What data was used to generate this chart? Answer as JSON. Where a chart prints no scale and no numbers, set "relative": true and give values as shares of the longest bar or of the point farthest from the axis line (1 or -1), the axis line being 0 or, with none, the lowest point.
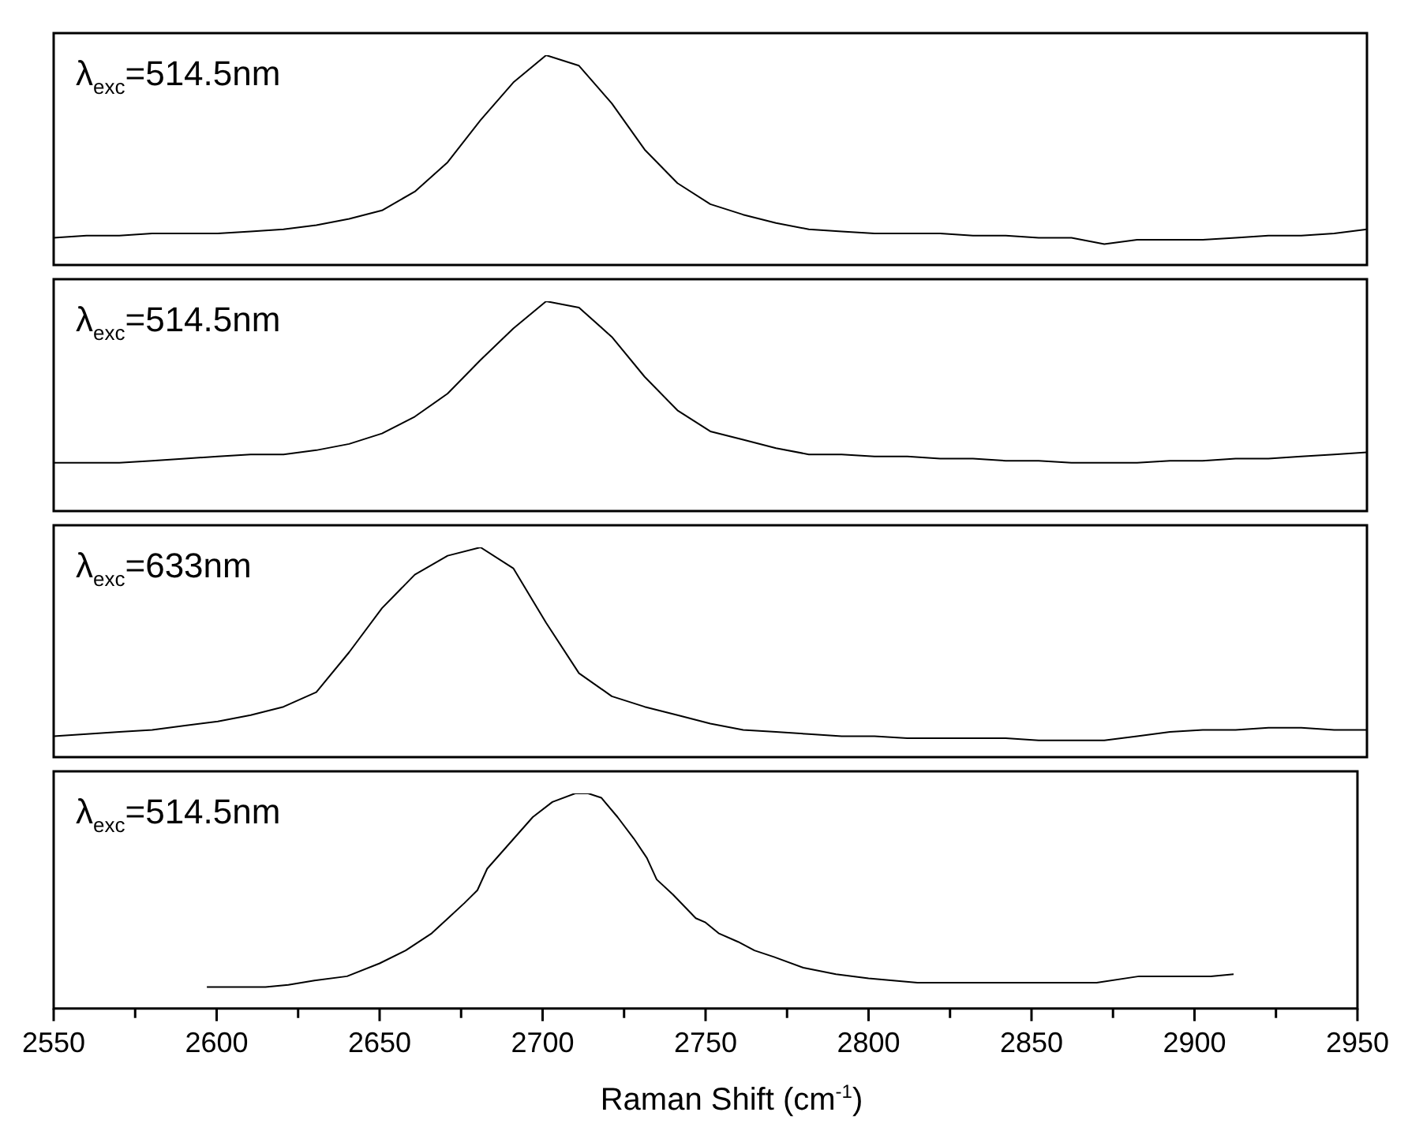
{
  "chart_data": [
    {
      "type": "line",
      "relative": true,
      "color": "#000000",
      "tick_labels": false,
      "annotations": [
        "λ$_{exc}$=514.5nm"
      ],
      "categories": [
        null,
        null,
        null,
        null,
        null,
        null,
        null,
        null,
        null,
        null,
        null,
        null,
        null,
        null,
        null,
        null,
        null,
        null,
        null,
        null,
        null,
        null,
        null,
        null,
        null,
        null,
        null,
        null,
        null,
        null,
        null,
        null,
        null,
        null,
        null,
        null,
        null,
        null,
        null,
        null,
        null
      ],
      "values": [
        0.13,
        0.14,
        0.14,
        0.15,
        0.15,
        0.15,
        0.16,
        0.17,
        0.19,
        0.22,
        0.26,
        0.35,
        0.49,
        0.69,
        0.87,
        1,
        0.95,
        0.77,
        0.55,
        0.39,
        0.29,
        0.24,
        0.2,
        0.17,
        0.16,
        0.15,
        0.15,
        0.15,
        0.14,
        0.14,
        0.13,
        0.13,
        0.1,
        0.12,
        0.12,
        0.12,
        0.13,
        0.14,
        0.14,
        0.15,
        0.17
      ]
    },
    {
      "type": "line",
      "relative": true,
      "color": "#000000",
      "tick_labels": false,
      "annotations": [
        "λ$_{exc}$=514.5nm"
      ],
      "categories": [
        null,
        null,
        null,
        null,
        null,
        null,
        null,
        null,
        null,
        null,
        null,
        null,
        null,
        null,
        null,
        null,
        null,
        null,
        null,
        null,
        null,
        null,
        null,
        null,
        null,
        null,
        null,
        null,
        null,
        null,
        null,
        null,
        null,
        null,
        null,
        null,
        null,
        null,
        null,
        null,
        null
      ],
      "values": [
        0.23,
        0.23,
        0.23,
        0.24,
        0.25,
        0.26,
        0.27,
        0.27,
        0.29,
        0.32,
        0.37,
        0.45,
        0.56,
        0.72,
        0.87,
        1,
        0.97,
        0.83,
        0.64,
        0.48,
        0.38,
        0.34,
        0.3,
        0.27,
        0.27,
        0.26,
        0.26,
        0.25,
        0.25,
        0.24,
        0.24,
        0.23,
        0.23,
        0.23,
        0.24,
        0.24,
        0.25,
        0.25,
        0.26,
        0.27,
        0.28
      ]
    },
    {
      "type": "line",
      "relative": true,
      "color": "#000000",
      "tick_labels": false,
      "annotations": [
        "λ$_{exc}$=633nm"
      ],
      "categories": [
        null,
        null,
        null,
        null,
        null,
        null,
        null,
        null,
        null,
        null,
        null,
        null,
        null,
        null,
        null,
        null,
        null,
        null,
        null,
        null,
        null,
        null,
        null,
        null,
        null,
        null,
        null,
        null,
        null,
        null,
        null,
        null,
        null,
        null,
        null,
        null,
        null,
        null,
        null,
        null,
        null
      ],
      "values": [
        0.1,
        0.11,
        0.12,
        0.13,
        0.15,
        0.17,
        0.2,
        0.24,
        0.31,
        0.5,
        0.71,
        0.87,
        0.96,
        1,
        0.9,
        0.64,
        0.4,
        0.29,
        0.24,
        0.2,
        0.16,
        0.13,
        0.12,
        0.11,
        0.1,
        0.1,
        0.09,
        0.09,
        0.09,
        0.09,
        0.08,
        0.08,
        0.08,
        0.1,
        0.12,
        0.13,
        0.13,
        0.14,
        0.14,
        0.13,
        0.13
      ]
    },
    {
      "type": "line",
      "relative": true,
      "color": "#000000",
      "xlim": [
        2550,
        2950
      ],
      "xticks": [
        2550,
        {
          "value": 2575,
          "label": null
        },
        2600,
        {
          "value": 2625,
          "label": null
        },
        2650,
        {
          "value": 2675,
          "label": null
        },
        2700,
        {
          "value": 2725,
          "label": null
        },
        2750,
        {
          "value": 2775,
          "label": null
        },
        2800,
        {
          "value": 2825,
          "label": null
        },
        2850,
        {
          "value": 2875,
          "label": null
        },
        2900,
        {
          "value": 2925,
          "label": null
        },
        2950
      ],
      "tick_labels": "x",
      "xlabel": "Raman Shift (cm$^{-1}$)",
      "annotations": [
        "λ$_{exc}$=514.5nm"
      ],
      "x": [
        2597,
        2605,
        2615,
        2622,
        2630,
        2640,
        2650,
        2658,
        2666,
        2671,
        2676,
        2680,
        2683,
        2690,
        2697,
        2703,
        2710,
        2714,
        2718,
        2723,
        2728,
        2732,
        2735,
        2740,
        2747,
        2750,
        2754,
        2760,
        2765,
        2771,
        2780,
        2790,
        2800,
        2815,
        2830,
        2852,
        2870,
        2883,
        2895,
        2905,
        2912
      ],
      "values": [
        0.1,
        0.1,
        0.1,
        0.11,
        0.13,
        0.15,
        0.21,
        0.27,
        0.35,
        0.42,
        0.49,
        0.55,
        0.65,
        0.77,
        0.89,
        0.96,
        1,
        1,
        0.98,
        0.89,
        0.79,
        0.7,
        0.6,
        0.53,
        0.42,
        0.4,
        0.35,
        0.31,
        0.27,
        0.24,
        0.19,
        0.16,
        0.14,
        0.12,
        0.12,
        0.12,
        0.12,
        0.15,
        0.15,
        0.15,
        0.16
      ]
    }
  ]
}
